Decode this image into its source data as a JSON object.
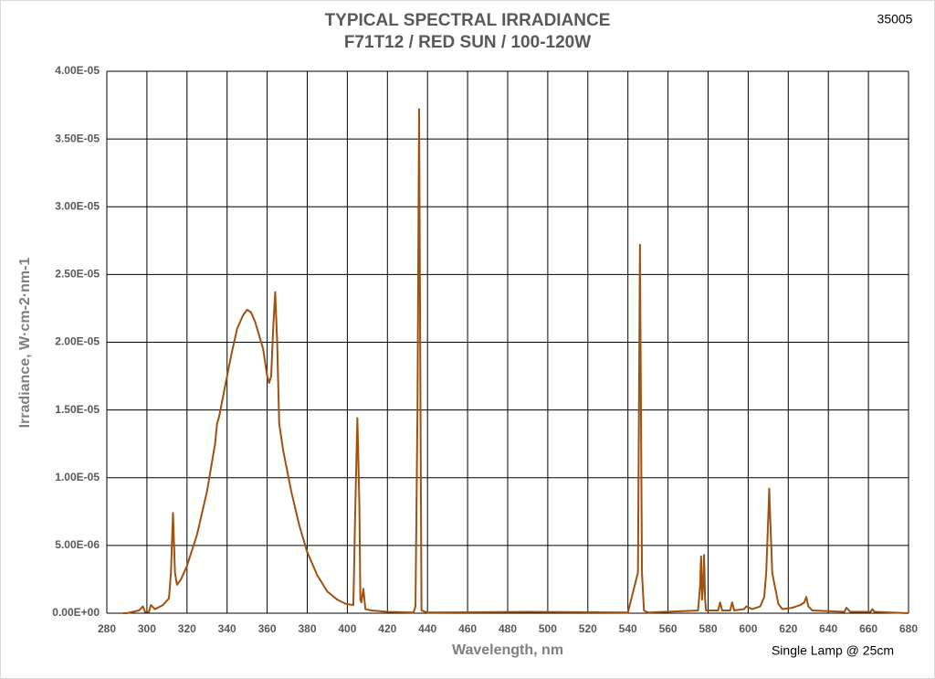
{
  "chart_data": {
    "type": "line",
    "title": "TYPICAL SPECTRAL IRRADIANCE",
    "subtitle": "F71T12 / RED SUN / 100-120W",
    "id_label": "35005",
    "x_label": "Wavelength, nm",
    "y_label": "Irradiance, W·cm-2·nm-1",
    "annotation": "Single Lamp @ 25cm",
    "color": "#a0500f",
    "grid": true,
    "xlim": [
      280,
      680
    ],
    "xticks": [
      280,
      300,
      320,
      340,
      360,
      380,
      400,
      420,
      440,
      460,
      480,
      500,
      520,
      540,
      560,
      580,
      600,
      620,
      640,
      660,
      680
    ],
    "ylim": [
      0,
      4e-05
    ],
    "yticks": [
      {
        "value": 0,
        "label": "0.00E+00"
      },
      {
        "value": 5e-06,
        "label": "5.00E-06"
      },
      {
        "value": 1e-05,
        "label": "1.00E-05"
      },
      {
        "value": 1.5e-05,
        "label": "1.50E-05"
      },
      {
        "value": 2e-05,
        "label": "2.00E-05"
      },
      {
        "value": 2.5e-05,
        "label": "2.50E-05"
      },
      {
        "value": 3e-05,
        "label": "3.00E-05"
      },
      {
        "value": 3.5e-05,
        "label": "3.50E-05"
      },
      {
        "value": 4e-05,
        "label": "4.00E-05"
      }
    ],
    "x": [
      288,
      290,
      296,
      298,
      299,
      301,
      302,
      304,
      308,
      311,
      312,
      313,
      314,
      315,
      317,
      320,
      325,
      330,
      334,
      335,
      336,
      338,
      342,
      345,
      348,
      350,
      352,
      354,
      356,
      358,
      360,
      361,
      362,
      363,
      364,
      365,
      366,
      368,
      372,
      376,
      380,
      385,
      390,
      395,
      399,
      403,
      404,
      405,
      406,
      406.5,
      407,
      408,
      409,
      412,
      420,
      433,
      434,
      435,
      435.8,
      436.5,
      437,
      440,
      490,
      540,
      545,
      546,
      547,
      548,
      550,
      575,
      576,
      576.5,
      577,
      577.5,
      578,
      578.5,
      579,
      585,
      586,
      587,
      591,
      592,
      593,
      598,
      599,
      602,
      606,
      608,
      609,
      610,
      610.5,
      611,
      612,
      613,
      614,
      615,
      617,
      622,
      626,
      628,
      629,
      630,
      632,
      648,
      649,
      651,
      661,
      662,
      663,
      680
    ],
    "values": [
      0,
      0,
      2e-07,
      5e-07,
      1e-07,
      1e-07,
      6e-07,
      3e-07,
      6e-07,
      1.1e-06,
      3e-06,
      7.4e-06,
      3e-06,
      2.1e-06,
      2.5e-06,
      3.5e-06,
      5.8e-06,
      9e-06,
      1.25e-05,
      1.4e-05,
      1.45e-05,
      1.6e-05,
      1.9e-05,
      2.1e-05,
      2.2e-05,
      2.24e-05,
      2.22e-05,
      2.15e-05,
      2.05e-05,
      1.95e-05,
      1.75e-05,
      1.7e-05,
      1.75e-05,
      2.1e-05,
      2.37e-05,
      2e-05,
      1.4e-05,
      1.2e-05,
      9e-06,
      6.5e-06,
      4.5e-06,
      2.8e-06,
      1.6e-06,
      1e-06,
      7e-07,
      6e-07,
      8e-06,
      1.44e-05,
      8e-06,
      1e-06,
      8e-07,
      1.8e-06,
      3e-07,
      2e-07,
      1e-07,
      5e-08,
      5e-07,
      1.5e-05,
      3.72e-05,
      1.5e-05,
      2e-07,
      5e-08,
      1e-07,
      5e-08,
      3e-06,
      2.72e-05,
      3e-06,
      2e-07,
      5e-08,
      2e-07,
      2e-06,
      4.2e-06,
      1e-06,
      2e-06,
      4.3e-06,
      1e-06,
      2e-07,
      2e-07,
      8e-07,
      2e-07,
      2e-07,
      8e-07,
      2e-07,
      3e-07,
      5e-07,
      3e-07,
      5e-07,
      1.2e-06,
      3e-06,
      7e-06,
      9.2e-06,
      7e-06,
      3e-06,
      2.2e-06,
      1.5e-06,
      7e-07,
      3e-07,
      4e-07,
      6e-07,
      8e-07,
      1.2e-06,
      5e-07,
      2e-07,
      1e-07,
      4e-07,
      1e-07,
      1e-07,
      3e-07,
      1e-07,
      0
    ]
  }
}
